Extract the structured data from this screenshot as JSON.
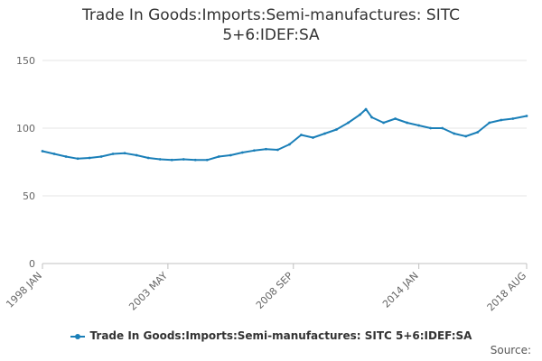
{
  "chart_data": {
    "type": "line",
    "title_lines": [
      "Trade In Goods:Imports:Semi-manufactures: SITC",
      "5+6:IDEF:SA"
    ],
    "ylim": [
      0,
      150
    ],
    "yticks": [
      0,
      50,
      100,
      150
    ],
    "xlim": [
      "1998-01",
      "2018-08"
    ],
    "xticks": [
      {
        "date": "1998-01",
        "label": "1998 JAN"
      },
      {
        "date": "2003-05",
        "label": "2003 MAY"
      },
      {
        "date": "2008-09",
        "label": "2008 SEP"
      },
      {
        "date": "2014-01",
        "label": "2014 JAN"
      },
      {
        "date": "2018-08",
        "label": "2018 AUG"
      }
    ],
    "grid": true,
    "legend_position": "bottom",
    "source_label": "Source:",
    "series": [
      {
        "name": "Trade In Goods:Imports:Semi-manufactures: SITC 5+6:IDEF:SA",
        "color": "#1a7fb8",
        "points": [
          [
            "1998-01",
            83
          ],
          [
            "1998-07",
            81
          ],
          [
            "1999-01",
            79
          ],
          [
            "1999-07",
            77.5
          ],
          [
            "2000-01",
            78
          ],
          [
            "2000-07",
            79
          ],
          [
            "2001-01",
            81
          ],
          [
            "2001-07",
            81.5
          ],
          [
            "2002-01",
            80
          ],
          [
            "2002-07",
            78
          ],
          [
            "2003-01",
            77
          ],
          [
            "2003-07",
            76.5
          ],
          [
            "2004-01",
            77
          ],
          [
            "2004-07",
            76.5
          ],
          [
            "2005-01",
            76.5
          ],
          [
            "2005-07",
            79
          ],
          [
            "2006-01",
            80
          ],
          [
            "2006-07",
            82
          ],
          [
            "2007-01",
            83.5
          ],
          [
            "2007-07",
            84.5
          ],
          [
            "2008-01",
            84
          ],
          [
            "2008-07",
            88
          ],
          [
            "2009-01",
            95
          ],
          [
            "2009-07",
            93
          ],
          [
            "2010-01",
            96
          ],
          [
            "2010-07",
            99
          ],
          [
            "2011-01",
            104
          ],
          [
            "2011-07",
            110
          ],
          [
            "2011-10",
            114
          ],
          [
            "2012-01",
            108
          ],
          [
            "2012-07",
            104
          ],
          [
            "2013-01",
            107
          ],
          [
            "2013-07",
            104
          ],
          [
            "2014-01",
            102
          ],
          [
            "2014-07",
            100
          ],
          [
            "2015-01",
            100
          ],
          [
            "2015-07",
            96
          ],
          [
            "2016-01",
            94
          ],
          [
            "2016-07",
            97
          ],
          [
            "2017-01",
            104
          ],
          [
            "2017-07",
            106
          ],
          [
            "2018-01",
            107
          ],
          [
            "2018-08",
            109
          ]
        ]
      }
    ]
  }
}
